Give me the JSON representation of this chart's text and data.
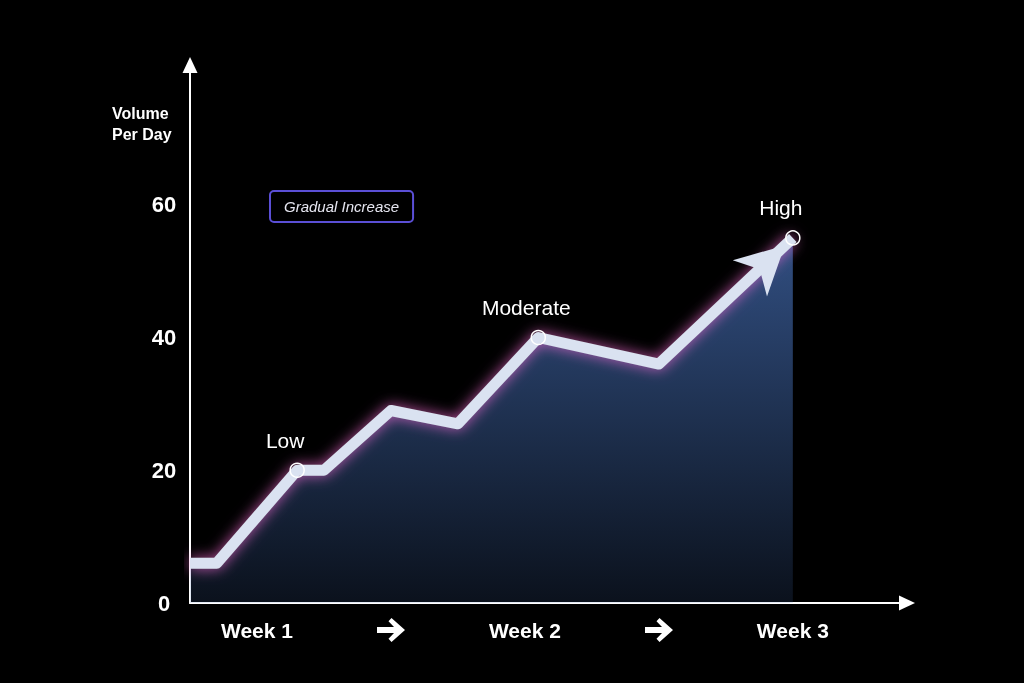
{
  "chart_data": {
    "type": "area",
    "ylabel": "Volume Per Day",
    "categories": [
      null,
      null,
      null,
      null,
      null,
      "Week 1",
      null,
      null,
      null,
      null,
      null,
      null,
      null,
      null,
      null,
      null,
      null,
      null,
      null,
      null,
      null,
      null,
      null,
      null,
      null,
      "Week 2",
      null,
      null,
      null,
      null,
      null,
      null,
      null,
      null,
      null,
      null,
      null,
      null,
      null,
      null,
      null,
      null,
      null,
      null,
      null,
      "Week 3",
      null,
      null,
      null,
      null,
      null,
      null,
      null,
      null
    ],
    "values": [
      6,
      null,
      6,
      null,
      null,
      null,
      null,
      null,
      20,
      null,
      20,
      null,
      null,
      null,
      null,
      29,
      null,
      null,
      null,
      null,
      27,
      null,
      null,
      null,
      null,
      null,
      40,
      null,
      null,
      null,
      null,
      null,
      null,
      null,
      null,
      36,
      null,
      null,
      null,
      null,
      null,
      null,
      null,
      null,
      null,
      55,
      null,
      null,
      null,
      null,
      null,
      null,
      null,
      null
    ],
    "color": "#4670b8",
    "ylim": [
      0,
      80
    ],
    "yticks": [
      0,
      20,
      40,
      60
    ],
    "annotations": [
      "Gradual Increase",
      {
        "text": "Low",
        "y": 20
      },
      {
        "text": "Moderate",
        "y": 40
      },
      {
        "text": "High",
        "x": "Week 3",
        "y": 55
      }
    ]
  }
}
